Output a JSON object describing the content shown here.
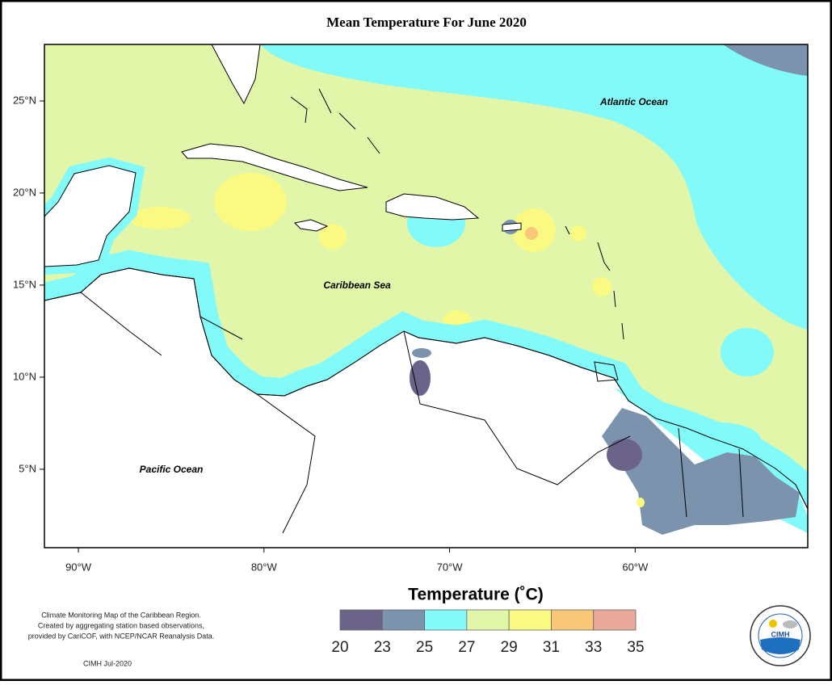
{
  "title": "Mean Temperature For June 2020",
  "map": {
    "xlim": [
      -91.83,
      -50.7
    ],
    "ylim": [
      0.74,
      28.07
    ],
    "xticks": [
      {
        "value": -90,
        "label": "90°W"
      },
      {
        "value": -80,
        "label": "80°W"
      },
      {
        "value": -70,
        "label": "70°W"
      },
      {
        "value": -60,
        "label": "60°W"
      }
    ],
    "yticks": [
      {
        "value": 25,
        "label": "25°N"
      },
      {
        "value": 20,
        "label": "20°N"
      },
      {
        "value": 15,
        "label": "15°N"
      },
      {
        "value": 10,
        "label": "10°N"
      },
      {
        "value": 5,
        "label": "5°N"
      }
    ],
    "labels": [
      "Atlantic Ocean",
      "Caribbean Sea",
      "Pacific Ocean"
    ]
  },
  "legend": {
    "title": "Temperature (˚C)",
    "bounds": [
      20,
      23,
      25,
      27,
      29,
      31,
      33,
      35
    ],
    "colors": [
      "#6b6389",
      "#7c93ae",
      "#82fafa",
      "#e1f6a8",
      "#fafa82",
      "#f8c878",
      "#e9a99a"
    ]
  },
  "footnote": [
    "Climate Monitoring Map of the Caribbean Region.",
    "Created by aggregating station based observations,",
    "provided by CariCOF, with NCEP/NCAR Reanalysis Data."
  ],
  "credit": "CIMH Jul-2020",
  "logo": "CIMH"
}
